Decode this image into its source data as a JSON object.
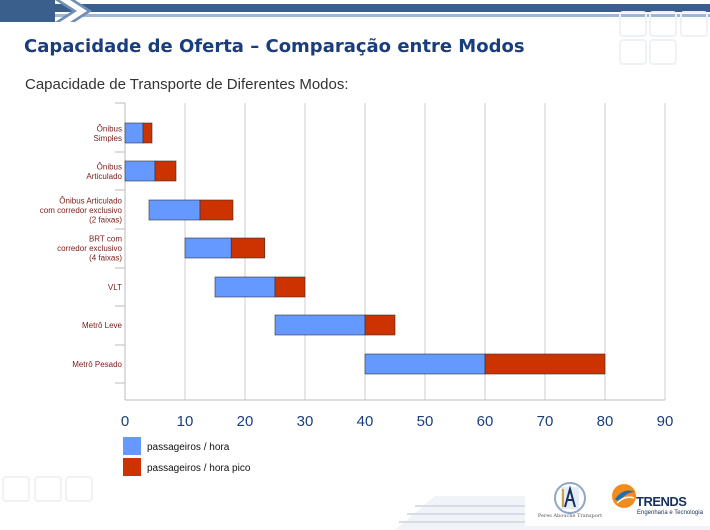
{
  "slide": {
    "title": "Capacidade de Oferta – Comparação entre Modos",
    "subtitle": "Capacidade de Transporte de Diferentes Modos:"
  },
  "logos": {
    "left_text": "Peres Abouche Transport",
    "right_name": "TRENDS",
    "right_tagline": "Engenharia e Tecnologia"
  },
  "colors": {
    "title": "#1a3d7c",
    "series_normal": "#6699ff",
    "series_peak": "#cc3300",
    "category_label": "#7a1a1a",
    "axis_tick_label": "#1a3d7c",
    "top_bar_dark": "#3a5f8c",
    "top_bar_light": "#9fb7d4"
  },
  "chart_data": {
    "type": "bar",
    "orientation": "horizontal",
    "stacked": true,
    "categories": [
      "Ônibus\nSimples",
      "Ônibus\nArticulado",
      "Ônibus Articulado\ncom corredor exclusivo\n(2 faixas)",
      "BRT com\ncorredor exclusivo\n(4 faixas)",
      "VLT",
      "Metrô Leve",
      "Metrô Pesado"
    ],
    "series": [
      {
        "name": "passageiros / hora",
        "ranges": [
          [
            0,
            3
          ],
          [
            0,
            5
          ],
          [
            4,
            12.5
          ],
          [
            10,
            17.7
          ],
          [
            15,
            25
          ],
          [
            25,
            40
          ],
          [
            40,
            60
          ]
        ]
      },
      {
        "name": "passageiros / hora pico",
        "ranges": [
          [
            3,
            4.5
          ],
          [
            5,
            8.5
          ],
          [
            12.5,
            18
          ],
          [
            17.7,
            23.3
          ],
          [
            25,
            30
          ],
          [
            40,
            45
          ],
          [
            60,
            80
          ]
        ]
      }
    ],
    "xlim": [
      0,
      90
    ],
    "xticks": [
      0,
      10,
      20,
      30,
      40,
      50,
      60,
      70,
      80,
      90
    ],
    "grid": true,
    "legend_position": "bottom-left"
  }
}
